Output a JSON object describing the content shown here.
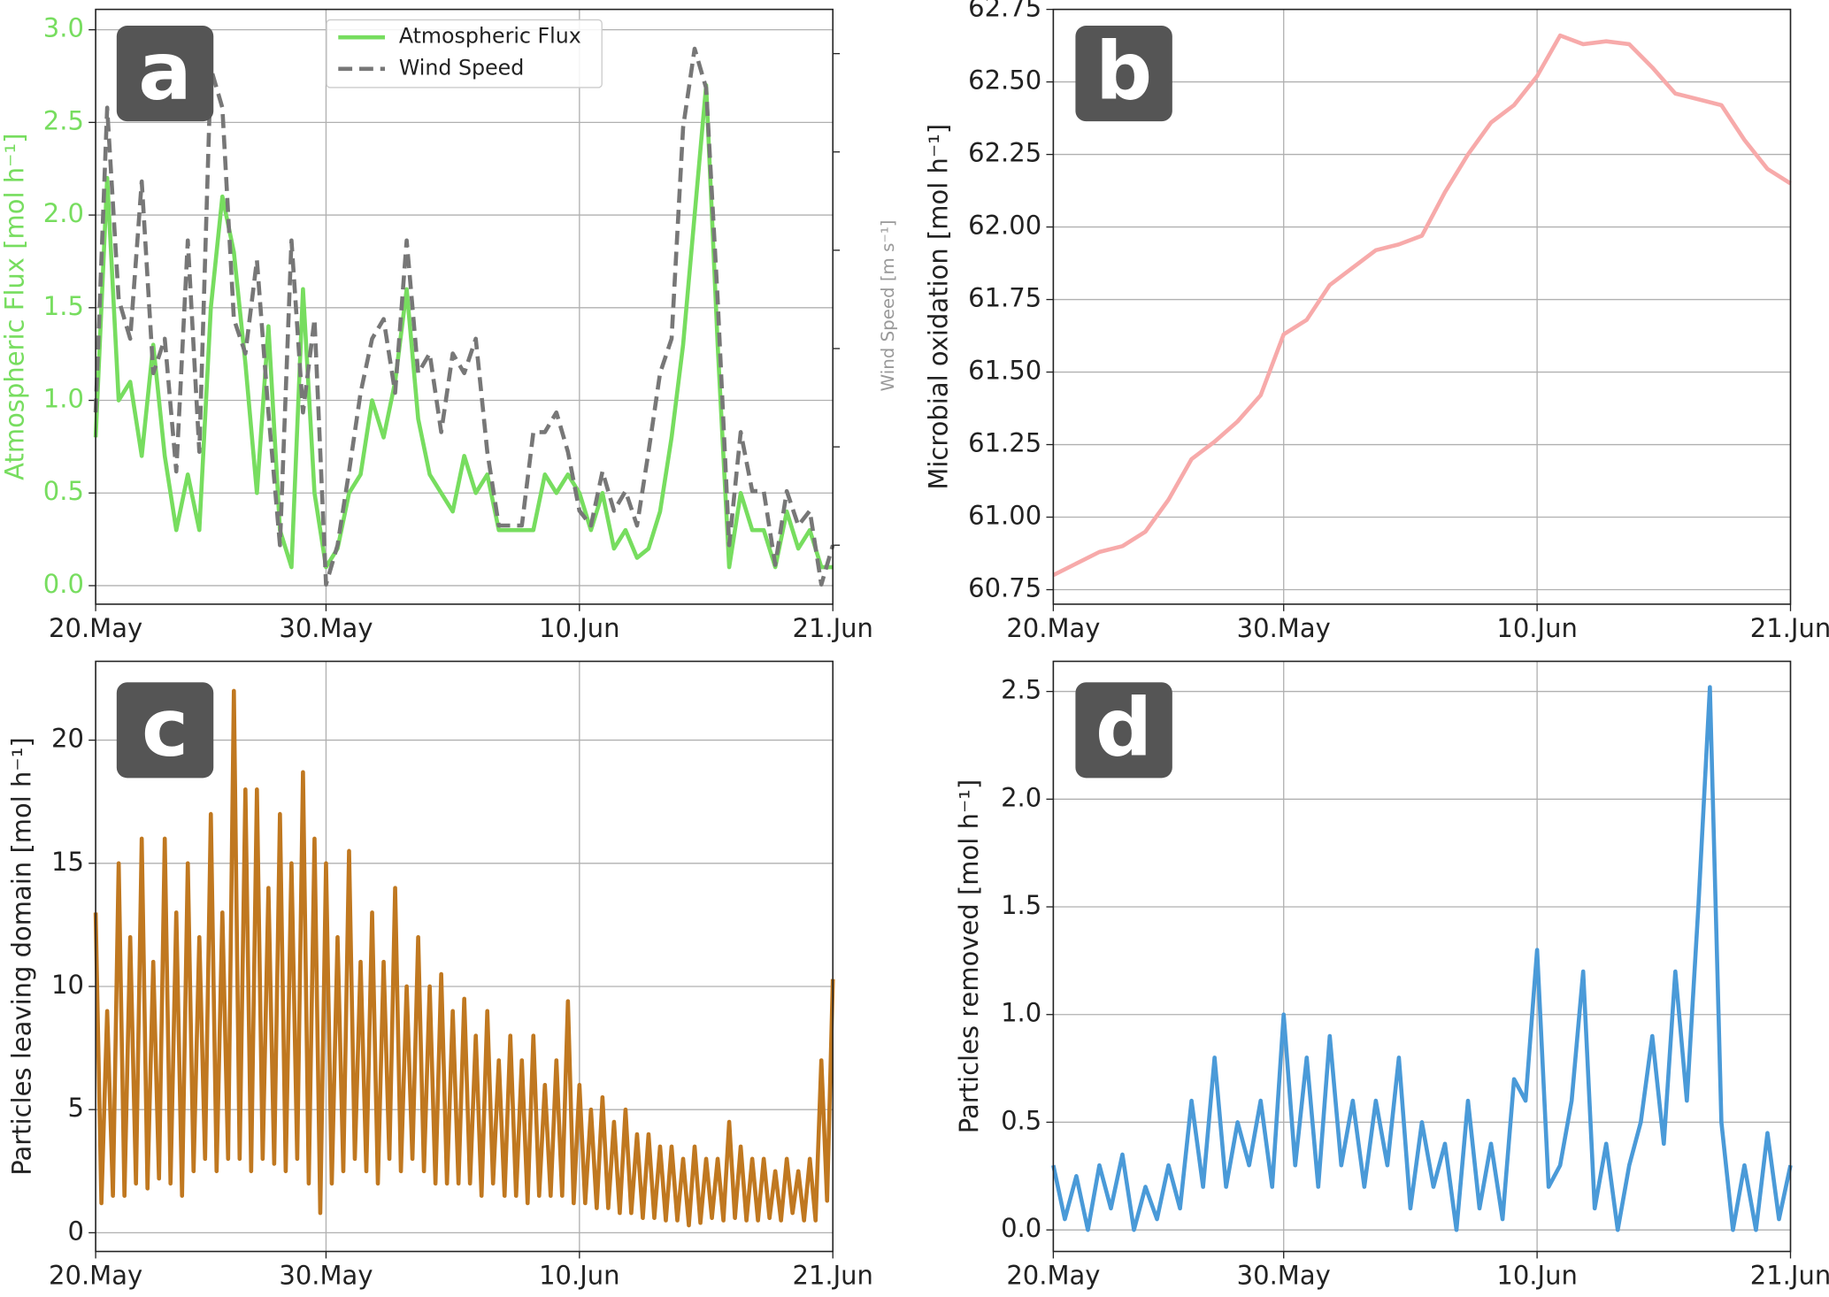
{
  "chart_data": [
    {
      "type": "line",
      "panel_label": "a",
      "ylabel": "Atmospheric Flux [mol h⁻¹]",
      "y2label": "Wind Speed [m s⁻¹]",
      "x": [
        0,
        0.5,
        1,
        1.5,
        2,
        2.5,
        3,
        3.5,
        4,
        4.5,
        5,
        5.5,
        6,
        6.5,
        7,
        7.5,
        8,
        8.5,
        9,
        9.5,
        10,
        10.5,
        11,
        11.5,
        12,
        12.5,
        13,
        13.5,
        14,
        14.5,
        15,
        15.5,
        16,
        16.5,
        17,
        17.5,
        18,
        18.5,
        19,
        19.5,
        20,
        20.5,
        21,
        21.5,
        22,
        22.5,
        23,
        23.5,
        24,
        24.5,
        25,
        25.5,
        26,
        26.5,
        27,
        27.5,
        28,
        28.5,
        29,
        29.5,
        30,
        30.5,
        31,
        31.5,
        32
      ],
      "series": [
        {
          "name": "Atmospheric Flux",
          "color": "#77dd5f",
          "linestyle": "solid",
          "values": [
            0.8,
            2.2,
            1.0,
            1.1,
            0.7,
            1.3,
            0.7,
            0.3,
            0.6,
            0.3,
            1.5,
            2.1,
            1.8,
            1.2,
            0.5,
            1.4,
            0.3,
            0.1,
            1.6,
            0.5,
            0.1,
            0.2,
            0.5,
            0.6,
            1.0,
            0.8,
            1.1,
            1.6,
            0.9,
            0.6,
            0.5,
            0.4,
            0.7,
            0.5,
            0.6,
            0.3,
            0.3,
            0.3,
            0.3,
            0.6,
            0.5,
            0.6,
            0.5,
            0.3,
            0.5,
            0.2,
            0.3,
            0.15,
            0.2,
            0.4,
            0.8,
            1.3,
            2.0,
            2.7,
            1.3,
            0.1,
            0.5,
            0.3,
            0.3,
            0.1,
            0.4,
            0.2,
            0.3,
            0.1,
            0.1
          ]
        },
        {
          "name": "Wind Speed",
          "color": "#777777",
          "linestyle": "dashed",
          "axis": "y2",
          "values": [
            4.7,
            10.9,
            7.0,
            6.2,
            9.4,
            5.5,
            6.2,
            3.5,
            8.2,
            3.9,
            11.7,
            10.9,
            6.6,
            5.9,
            7.8,
            4.7,
            2.0,
            8.2,
            4.7,
            6.6,
            1.2,
            2.0,
            3.5,
            5.1,
            6.2,
            6.6,
            5.1,
            8.2,
            5.5,
            5.9,
            4.3,
            5.9,
            5.5,
            6.2,
            3.9,
            2.4,
            2.4,
            2.4,
            4.3,
            4.3,
            4.7,
            3.9,
            2.7,
            2.4,
            3.5,
            2.7,
            3.1,
            2.4,
            3.9,
            5.5,
            6.2,
            10.5,
            12.1,
            11.3,
            7.0,
            2.0,
            4.3,
            3.1,
            3.1,
            1.6,
            3.1,
            2.4,
            2.7,
            1.2,
            2.0
          ]
        }
      ],
      "xlim": [
        0,
        32
      ],
      "xticks": [
        {
          "value": 0,
          "label": "20.May"
        },
        {
          "value": 10,
          "label": "30.May"
        },
        {
          "value": 21,
          "label": "10.Jun"
        },
        {
          "value": 32,
          "label": "21.Jun"
        }
      ],
      "ylim": [
        -0.1,
        3.11
      ],
      "yticks": [
        {
          "value": 0,
          "label": "0.0"
        },
        0.5,
        {
          "value": 1,
          "label": "1.0"
        },
        1.5,
        {
          "value": 2,
          "label": "2.0"
        },
        2.5,
        {
          "value": 3,
          "label": "3.0"
        }
      ],
      "y2lim": [
        0.8,
        12.9
      ],
      "y2ticks": [
        2,
        4,
        6,
        8,
        10,
        12
      ],
      "grid": true,
      "legend": "upper center"
    },
    {
      "type": "line",
      "panel_label": "b",
      "ylabel": "Microbial oxidation [mol h⁻¹]",
      "x": [
        0,
        1,
        2,
        3,
        4,
        5,
        6,
        7,
        8,
        9,
        10,
        11,
        12,
        13,
        14,
        15,
        16,
        17,
        18,
        19,
        20,
        21,
        22,
        23,
        24,
        25,
        26,
        27,
        28,
        29,
        30,
        31,
        32
      ],
      "series": [
        {
          "name": "Microbial oxidation",
          "color": "#f7aaaa",
          "linestyle": "solid",
          "values": [
            60.8,
            60.84,
            60.88,
            60.9,
            60.95,
            61.06,
            61.2,
            61.26,
            61.33,
            61.42,
            61.63,
            61.68,
            61.8,
            61.86,
            61.92,
            61.94,
            61.97,
            62.12,
            62.25,
            62.36,
            62.42,
            62.52,
            62.66,
            62.63,
            62.64,
            62.63,
            62.55,
            62.46,
            62.44,
            62.42,
            62.3,
            62.2,
            62.15
          ]
        }
      ],
      "xlim": [
        0,
        32
      ],
      "xticks": [
        {
          "value": 0,
          "label": "20.May"
        },
        {
          "value": 10,
          "label": "30.May"
        },
        {
          "value": 21,
          "label": "10.Jun"
        },
        {
          "value": 32,
          "label": "21.Jun"
        }
      ],
      "ylim": [
        60.7,
        62.75
      ],
      "yticks": [
        60.75,
        {
          "value": 61,
          "label": "61.00"
        },
        61.25,
        {
          "value": 61.5,
          "label": "61.50"
        },
        61.75,
        {
          "value": 62,
          "label": "62.00"
        },
        62.25,
        {
          "value": 62.5,
          "label": "62.50"
        },
        62.75
      ],
      "grid": true
    },
    {
      "type": "line",
      "panel_label": "c",
      "ylabel": "Particles leaving domain [mol h⁻¹]",
      "x": [
        0,
        0.25,
        0.5,
        0.75,
        1,
        1.25,
        1.5,
        1.75,
        2,
        2.25,
        2.5,
        2.75,
        3,
        3.25,
        3.5,
        3.75,
        4,
        4.25,
        4.5,
        4.75,
        5,
        5.25,
        5.5,
        5.75,
        6,
        6.25,
        6.5,
        6.75,
        7,
        7.25,
        7.5,
        7.75,
        8,
        8.25,
        8.5,
        8.75,
        9,
        9.25,
        9.5,
        9.75,
        10,
        10.25,
        10.5,
        10.75,
        11,
        11.25,
        11.5,
        11.75,
        12,
        12.25,
        12.5,
        12.75,
        13,
        13.25,
        13.5,
        13.75,
        14,
        14.25,
        14.5,
        14.75,
        15,
        15.25,
        15.5,
        15.75,
        16,
        16.25,
        16.5,
        16.75,
        17,
        17.25,
        17.5,
        17.75,
        18,
        18.25,
        18.5,
        18.75,
        19,
        19.25,
        19.5,
        19.75,
        20,
        20.25,
        20.5,
        20.75,
        21,
        21.25,
        21.5,
        21.75,
        22,
        22.25,
        22.5,
        22.75,
        23,
        23.25,
        23.5,
        23.75,
        24,
        24.25,
        24.5,
        24.75,
        25,
        25.25,
        25.5,
        25.75,
        26,
        26.25,
        26.5,
        26.75,
        27,
        27.25,
        27.5,
        27.75,
        28,
        28.25,
        28.5,
        28.75,
        29,
        29.25,
        29.5,
        29.75,
        30,
        30.25,
        30.5,
        30.75,
        31,
        31.25,
        31.5,
        31.75,
        32
      ],
      "series": [
        {
          "name": "Particles leaving domain",
          "color": "#c07820",
          "linestyle": "solid",
          "values": [
            13,
            1.2,
            9,
            1.5,
            15,
            1.5,
            12,
            2,
            16,
            1.8,
            11,
            2.2,
            16,
            2,
            13,
            1.5,
            15,
            2.5,
            12,
            3,
            17,
            2.5,
            13,
            3,
            22,
            3,
            18,
            2.5,
            18,
            3,
            14,
            2.8,
            17,
            2.5,
            15,
            3,
            18.7,
            2,
            16,
            0.8,
            15,
            2,
            12,
            2.5,
            15.5,
            3,
            11,
            2.5,
            13,
            2,
            11,
            3,
            14,
            2.5,
            10,
            3,
            12,
            2.5,
            10,
            2,
            10.5,
            2,
            9,
            2,
            9.5,
            2,
            8,
            1.5,
            9,
            2,
            7,
            1.5,
            8,
            1.5,
            7,
            1.2,
            8,
            1.5,
            6,
            1.5,
            7,
            1.5,
            9.4,
            1.2,
            6,
            1.2,
            5,
            1,
            5.5,
            1,
            4.5,
            0.8,
            5,
            0.8,
            4,
            0.6,
            4,
            0.6,
            3.5,
            0.5,
            3.5,
            0.5,
            3,
            0.3,
            3.5,
            0.4,
            3,
            0.6,
            3,
            0.5,
            4.5,
            0.6,
            3.5,
            0.5,
            3,
            0.5,
            3,
            0.6,
            2.5,
            0.5,
            3,
            0.8,
            2.5,
            0.5,
            3,
            0.5,
            7,
            1.3,
            10.3
          ]
        }
      ],
      "xlim": [
        0,
        32
      ],
      "xticks": [
        {
          "value": 0,
          "label": "20.May"
        },
        {
          "value": 10,
          "label": "30.May"
        },
        {
          "value": 21,
          "label": "10.Jun"
        },
        {
          "value": 32,
          "label": "21.Jun"
        }
      ],
      "ylim": [
        -0.76,
        23.2
      ],
      "yticks": [
        0,
        5,
        10,
        15,
        20
      ],
      "grid": true
    },
    {
      "type": "line",
      "panel_label": "d",
      "ylabel": "Particles removed [mol h⁻¹]",
      "x": [
        0,
        0.5,
        1,
        1.5,
        2,
        2.5,
        3,
        3.5,
        4,
        4.5,
        5,
        5.5,
        6,
        6.5,
        7,
        7.5,
        8,
        8.5,
        9,
        9.5,
        10,
        10.5,
        11,
        11.5,
        12,
        12.5,
        13,
        13.5,
        14,
        14.5,
        15,
        15.5,
        16,
        16.5,
        17,
        17.5,
        18,
        18.5,
        19,
        19.5,
        20,
        20.5,
        21,
        21.5,
        22,
        22.5,
        23,
        23.5,
        24,
        24.5,
        25,
        25.5,
        26,
        26.5,
        27,
        27.5,
        28,
        28.5,
        29,
        29.5,
        30,
        30.5,
        31,
        31.5,
        32
      ],
      "series": [
        {
          "name": "Particles removed",
          "color": "#4a9ad8",
          "linestyle": "solid",
          "values": [
            0.3,
            0.05,
            0.25,
            0,
            0.3,
            0.1,
            0.35,
            0,
            0.2,
            0.05,
            0.3,
            0.1,
            0.6,
            0.2,
            0.8,
            0.2,
            0.5,
            0.3,
            0.6,
            0.2,
            1.0,
            0.3,
            0.8,
            0.2,
            0.9,
            0.3,
            0.6,
            0.2,
            0.6,
            0.3,
            0.8,
            0.1,
            0.5,
            0.2,
            0.4,
            0,
            0.6,
            0.1,
            0.4,
            0.05,
            0.7,
            0.6,
            1.3,
            0.2,
            0.3,
            0.6,
            1.2,
            0.1,
            0.4,
            0,
            0.3,
            0.5,
            0.9,
            0.4,
            1.2,
            0.6,
            1.5,
            2.52,
            0.5,
            0,
            0.3,
            0,
            0.45,
            0.05,
            0.3
          ]
        }
      ],
      "xlim": [
        0,
        32
      ],
      "xticks": [
        {
          "value": 0,
          "label": "20.May"
        },
        {
          "value": 10,
          "label": "30.May"
        },
        {
          "value": 21,
          "label": "10.Jun"
        },
        {
          "value": 32,
          "label": "21.Jun"
        }
      ],
      "ylim": [
        -0.1,
        2.64
      ],
      "yticks": [
        {
          "value": 0,
          "label": "0.0"
        },
        0.5,
        {
          "value": 1,
          "label": "1.0"
        },
        1.5,
        {
          "value": 2,
          "label": "2.0"
        },
        2.5
      ],
      "grid": true
    }
  ]
}
